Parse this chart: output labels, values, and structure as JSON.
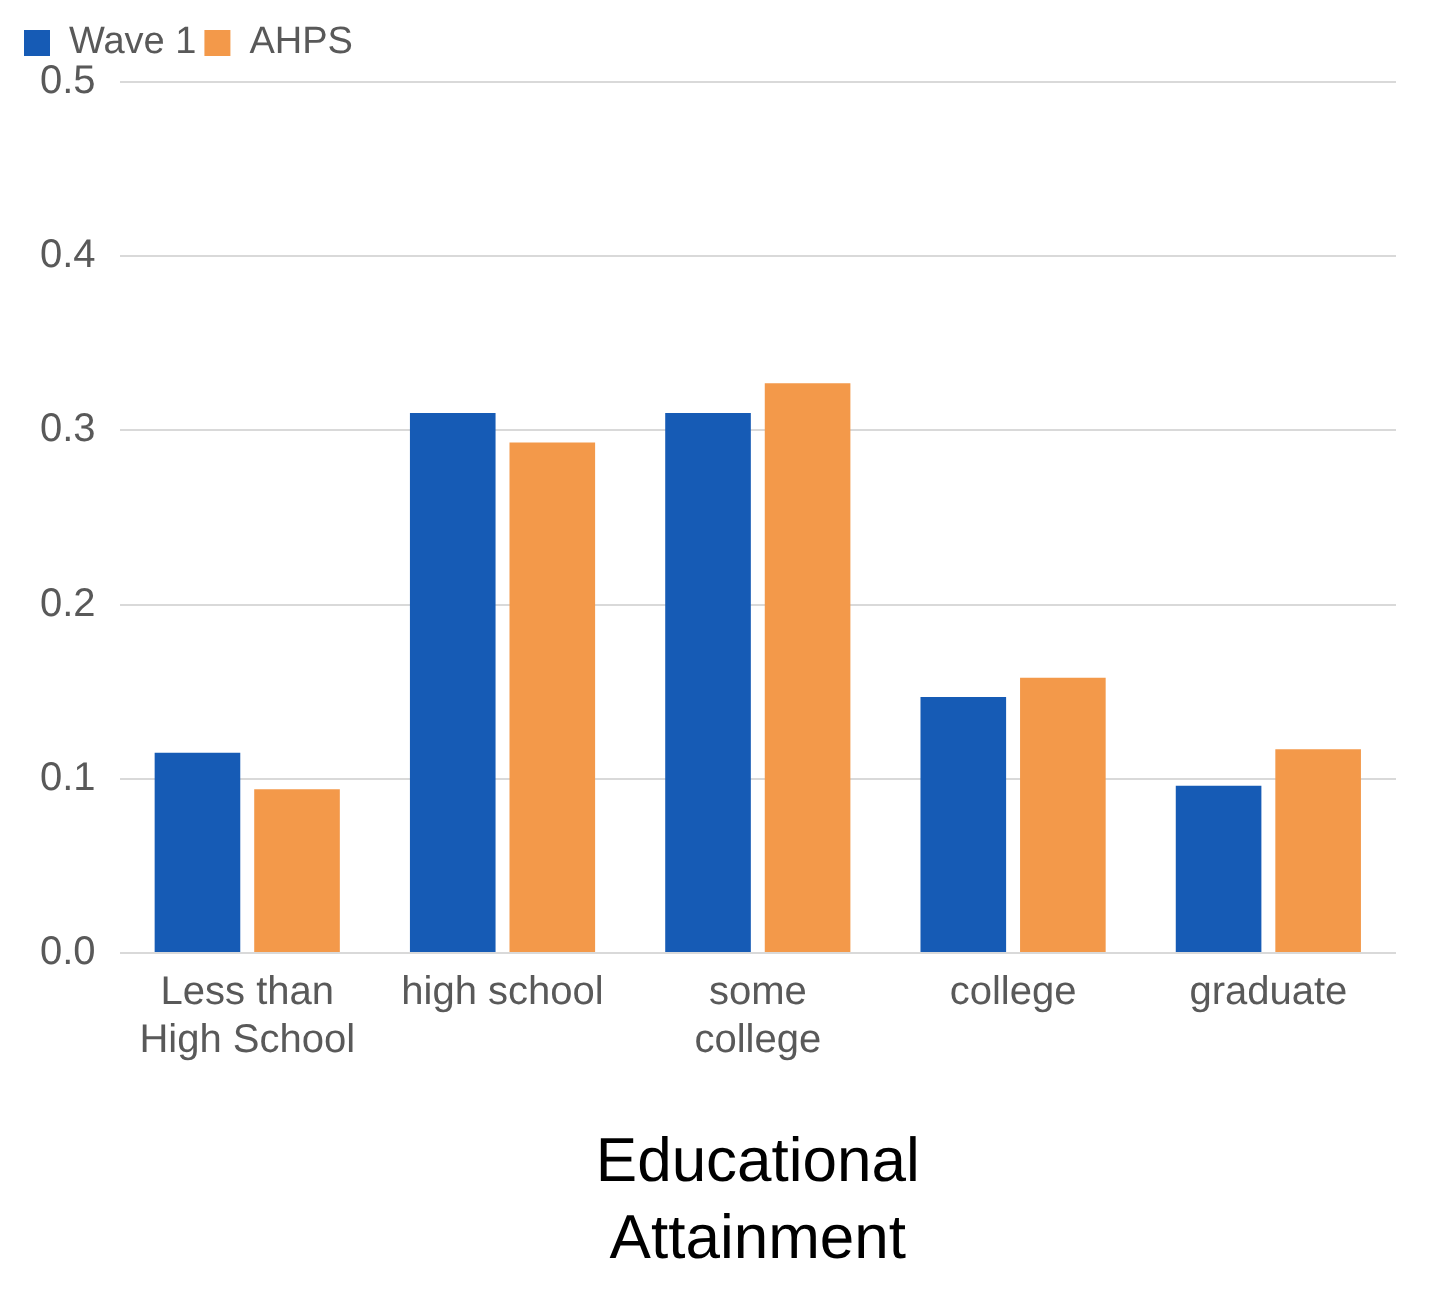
{
  "chart_data": {
    "type": "bar",
    "xlabel": "Educational Attainment",
    "categories": [
      "Less than High School",
      "high school",
      "some college",
      "college",
      "graduate"
    ],
    "series": [
      {
        "name": "Wave 1",
        "color": "#165bb5",
        "values": [
          0.115,
          0.31,
          0.31,
          0.147,
          0.096
        ]
      },
      {
        "name": "AHPS",
        "color": "#f3994a",
        "values": [
          0.094,
          0.293,
          0.327,
          0.158,
          0.117
        ]
      }
    ],
    "ylim": [
      0,
      0.5
    ],
    "yticks": [
      {
        "value": 0,
        "label": "0.0"
      },
      {
        "value": 0.1,
        "label": "0.1"
      },
      {
        "value": 0.2,
        "label": "0.2"
      },
      {
        "value": 0.3,
        "label": "0.3"
      },
      {
        "value": 0.4,
        "label": "0.4"
      },
      {
        "value": 0.5,
        "label": "0.5"
      }
    ],
    "grid": "y",
    "legend": "top left"
  }
}
